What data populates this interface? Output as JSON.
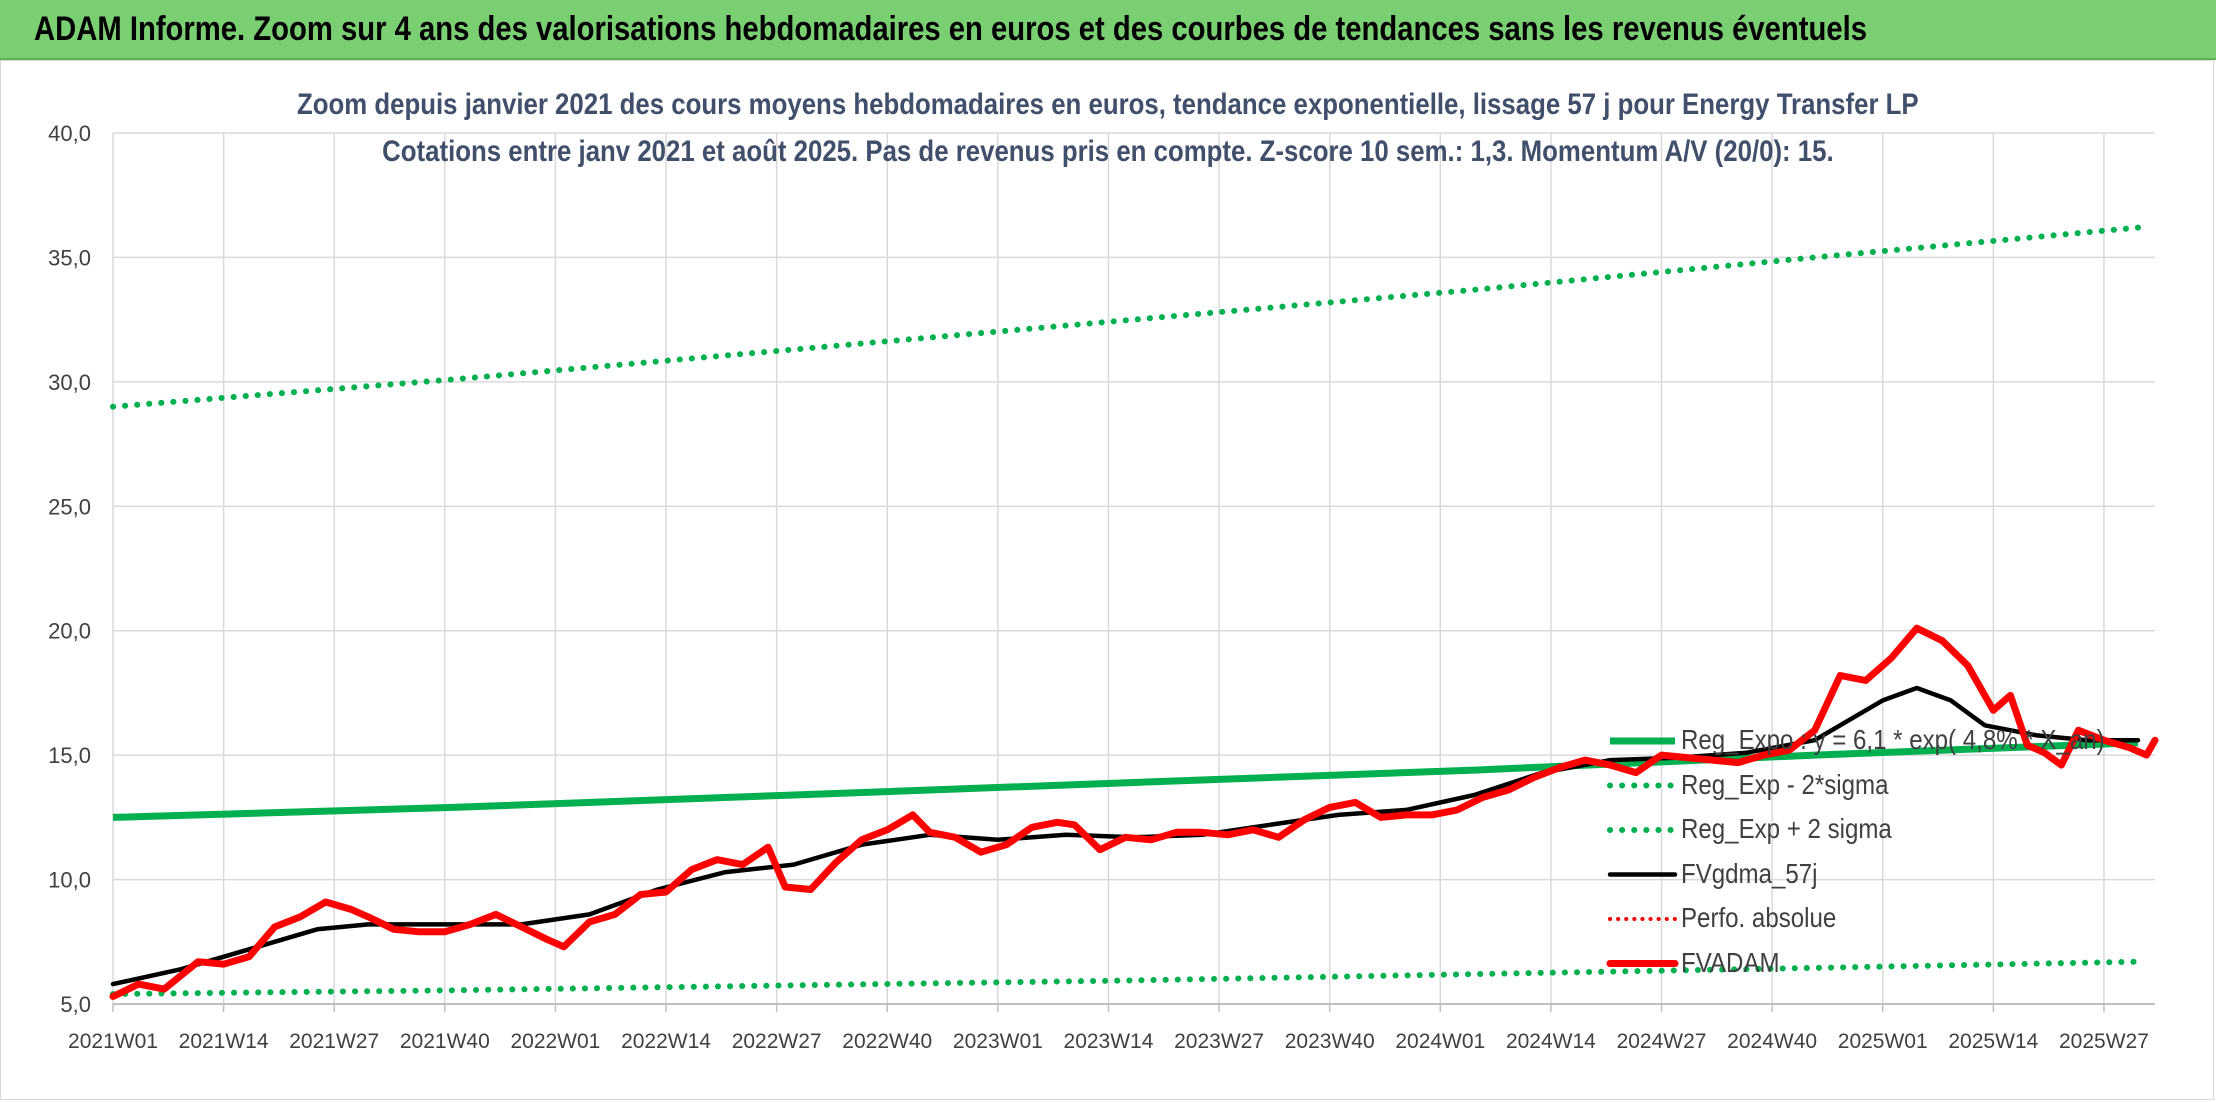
{
  "banner": {
    "title": "ADAM Informe. Zoom sur 4 ans des valorisations hebdomadaires en euros et des courbes de tendances sans les revenus éventuels"
  },
  "colors": {
    "banner": "#7bcf73",
    "reg_exp": "#00b050",
    "fvgdma": "#000000",
    "fvadam": "#ff0000",
    "perfo": "#ff0000",
    "grid": "#d9d9d9",
    "title": "#404f6a"
  },
  "chart_data": {
    "type": "line",
    "title_line1": "Zoom depuis janvier 2021 des cours moyens hebdomadaires en euros, tendance exponentielle, lissage 57 j pour Energy Transfer LP",
    "title_line2": "Cotations entre janv 2021 et août 2025. Pas de revenus pris en compte. Z-score 10 sem.: 1,3. Momentum A/V (20/0): 15.",
    "ylim": [
      5,
      40
    ],
    "yticks": [
      "5,0",
      "10,0",
      "15,0",
      "20,0",
      "25,0",
      "30,0",
      "35,0",
      "40,0"
    ],
    "x_range": [
      0,
      240
    ],
    "xticks": [
      {
        "label": "2021W01",
        "index": 0
      },
      {
        "label": "2021W14",
        "index": 13
      },
      {
        "label": "2021W27",
        "index": 26
      },
      {
        "label": "2021W40",
        "index": 39
      },
      {
        "label": "2022W01",
        "index": 52
      },
      {
        "label": "2022W14",
        "index": 65
      },
      {
        "label": "2022W27",
        "index": 78
      },
      {
        "label": "2022W40",
        "index": 91
      },
      {
        "label": "2023W01",
        "index": 104
      },
      {
        "label": "2023W14",
        "index": 117
      },
      {
        "label": "2023W27",
        "index": 130
      },
      {
        "label": "2023W40",
        "index": 143
      },
      {
        "label": "2024W01",
        "index": 156
      },
      {
        "label": "2024W14",
        "index": 169
      },
      {
        "label": "2024W27",
        "index": 182
      },
      {
        "label": "2024W40",
        "index": 195
      },
      {
        "label": "2025W01",
        "index": 208
      },
      {
        "label": "2025W14",
        "index": 221
      },
      {
        "label": "2025W27",
        "index": 234
      }
    ],
    "grid": true,
    "legend_position": "right",
    "series": [
      {
        "name": "Reg_Expo : y = 6,1 * exp( 4,8% * X_an)",
        "style": "solid-thick",
        "points": [
          [
            0,
            12.5
          ],
          [
            40,
            12.9
          ],
          [
            80,
            13.4
          ],
          [
            120,
            13.9
          ],
          [
            160,
            14.4
          ],
          [
            200,
            15.0
          ],
          [
            238,
            15.5
          ]
        ]
      },
      {
        "name": "Reg_Exp - 2*sigma",
        "style": "dotted",
        "points": [
          [
            0,
            5.4
          ],
          [
            40,
            5.55
          ],
          [
            80,
            5.75
          ],
          [
            120,
            5.95
          ],
          [
            160,
            6.2
          ],
          [
            200,
            6.45
          ],
          [
            238,
            6.7
          ]
        ]
      },
      {
        "name": "Reg_Exp + 2 sigma",
        "style": "dotted",
        "points": [
          [
            0,
            29.0
          ],
          [
            40,
            30.1
          ],
          [
            80,
            31.3
          ],
          [
            120,
            32.5
          ],
          [
            160,
            33.7
          ],
          [
            200,
            35.0
          ],
          [
            238,
            36.2
          ]
        ]
      },
      {
        "name": "FVgdma_57j",
        "style": "solid",
        "points": [
          [
            0,
            5.8
          ],
          [
            8,
            6.4
          ],
          [
            16,
            7.2
          ],
          [
            24,
            8.0
          ],
          [
            30,
            8.2
          ],
          [
            40,
            8.2
          ],
          [
            48,
            8.2
          ],
          [
            56,
            8.6
          ],
          [
            64,
            9.6
          ],
          [
            72,
            10.3
          ],
          [
            80,
            10.6
          ],
          [
            88,
            11.4
          ],
          [
            96,
            11.8
          ],
          [
            104,
            11.6
          ],
          [
            112,
            11.8
          ],
          [
            120,
            11.7
          ],
          [
            128,
            11.8
          ],
          [
            136,
            12.2
          ],
          [
            144,
            12.6
          ],
          [
            152,
            12.8
          ],
          [
            160,
            13.4
          ],
          [
            168,
            14.3
          ],
          [
            176,
            14.8
          ],
          [
            184,
            14.9
          ],
          [
            192,
            15.1
          ],
          [
            200,
            15.6
          ],
          [
            204,
            16.4
          ],
          [
            208,
            17.2
          ],
          [
            212,
            17.7
          ],
          [
            216,
            17.2
          ],
          [
            220,
            16.2
          ],
          [
            226,
            15.8
          ],
          [
            232,
            15.6
          ],
          [
            238,
            15.6
          ]
        ]
      },
      {
        "name": "Perfo. absolue",
        "style": "dotted-red",
        "points": []
      },
      {
        "name": "FVADAM",
        "style": "solid-thick",
        "points": [
          [
            0,
            5.3
          ],
          [
            3,
            5.8
          ],
          [
            6,
            5.6
          ],
          [
            10,
            6.7
          ],
          [
            13,
            6.6
          ],
          [
            16,
            6.9
          ],
          [
            19,
            8.1
          ],
          [
            22,
            8.5
          ],
          [
            25,
            9.1
          ],
          [
            28,
            8.8
          ],
          [
            30,
            8.5
          ],
          [
            33,
            8.0
          ],
          [
            36,
            7.9
          ],
          [
            39,
            7.9
          ],
          [
            42,
            8.2
          ],
          [
            45,
            8.6
          ],
          [
            48,
            8.1
          ],
          [
            51,
            7.6
          ],
          [
            53,
            7.3
          ],
          [
            56,
            8.3
          ],
          [
            59,
            8.6
          ],
          [
            62,
            9.4
          ],
          [
            65,
            9.5
          ],
          [
            68,
            10.4
          ],
          [
            71,
            10.8
          ],
          [
            74,
            10.6
          ],
          [
            77,
            11.3
          ],
          [
            79,
            9.7
          ],
          [
            82,
            9.6
          ],
          [
            85,
            10.7
          ],
          [
            88,
            11.6
          ],
          [
            91,
            12.0
          ],
          [
            94,
            12.6
          ],
          [
            96,
            11.9
          ],
          [
            99,
            11.7
          ],
          [
            102,
            11.1
          ],
          [
            105,
            11.4
          ],
          [
            108,
            12.1
          ],
          [
            111,
            12.3
          ],
          [
            113,
            12.2
          ],
          [
            116,
            11.2
          ],
          [
            119,
            11.7
          ],
          [
            122,
            11.6
          ],
          [
            125,
            11.9
          ],
          [
            128,
            11.9
          ],
          [
            131,
            11.8
          ],
          [
            134,
            12.0
          ],
          [
            137,
            11.7
          ],
          [
            140,
            12.4
          ],
          [
            143,
            12.9
          ],
          [
            146,
            13.1
          ],
          [
            149,
            12.5
          ],
          [
            152,
            12.6
          ],
          [
            155,
            12.6
          ],
          [
            158,
            12.8
          ],
          [
            161,
            13.3
          ],
          [
            164,
            13.6
          ],
          [
            167,
            14.1
          ],
          [
            170,
            14.5
          ],
          [
            173,
            14.8
          ],
          [
            176,
            14.6
          ],
          [
            179,
            14.3
          ],
          [
            182,
            15.0
          ],
          [
            185,
            14.9
          ],
          [
            188,
            14.8
          ],
          [
            191,
            14.7
          ],
          [
            194,
            15.0
          ],
          [
            197,
            15.2
          ],
          [
            200,
            16.0
          ],
          [
            203,
            18.2
          ],
          [
            206,
            18.0
          ],
          [
            209,
            18.9
          ],
          [
            212,
            20.1
          ],
          [
            215,
            19.6
          ],
          [
            218,
            18.6
          ],
          [
            221,
            16.8
          ],
          [
            223,
            17.4
          ],
          [
            225,
            15.4
          ],
          [
            227,
            15.1
          ],
          [
            229,
            14.6
          ],
          [
            231,
            16.0
          ],
          [
            234,
            15.6
          ],
          [
            237,
            15.3
          ],
          [
            239,
            15.0
          ],
          [
            240,
            15.6
          ]
        ]
      }
    ]
  }
}
